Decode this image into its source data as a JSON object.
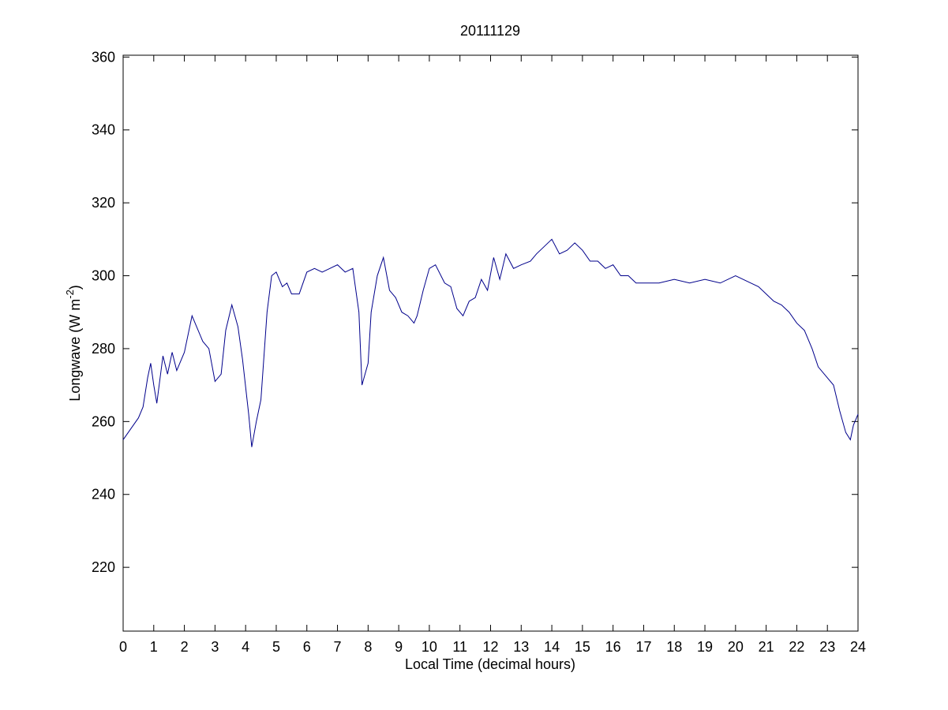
{
  "chart_data": {
    "type": "line",
    "title": "20111129",
    "x_label": "Local Time (decimal hours)",
    "y_label": {
      "text": "Longwave (W m",
      "superscript": "-2",
      "close": ")"
    },
    "xlim": [
      0,
      24
    ],
    "ylim": [
      202.5,
      360.5
    ],
    "xticks": [
      0,
      1,
      2,
      3,
      4,
      5,
      6,
      7,
      8,
      9,
      10,
      11,
      12,
      13,
      14,
      15,
      16,
      17,
      18,
      19,
      20,
      21,
      22,
      23,
      24
    ],
    "yticks": [
      220,
      240,
      260,
      280,
      300,
      320,
      340,
      360
    ],
    "grid": false,
    "series": [
      {
        "color": "#00008b",
        "x": [
          0,
          0.25,
          0.5,
          0.65,
          0.8,
          0.9,
          1.0,
          1.1,
          1.3,
          1.45,
          1.6,
          1.75,
          2.0,
          2.1,
          2.25,
          2.4,
          2.6,
          2.8,
          3.0,
          3.2,
          3.35,
          3.55,
          3.75,
          3.9,
          4.1,
          4.2,
          4.35,
          4.5,
          4.7,
          4.85,
          5.0,
          5.2,
          5.35,
          5.5,
          5.75,
          6.0,
          6.25,
          6.5,
          6.75,
          7.0,
          7.25,
          7.5,
          7.7,
          7.8,
          8.0,
          8.1,
          8.3,
          8.5,
          8.7,
          8.9,
          9.1,
          9.3,
          9.5,
          9.6,
          9.8,
          10.0,
          10.2,
          10.5,
          10.7,
          10.9,
          11.1,
          11.3,
          11.5,
          11.7,
          11.9,
          12.1,
          12.3,
          12.5,
          12.75,
          13.0,
          13.3,
          13.5,
          13.75,
          14.0,
          14.25,
          14.5,
          14.75,
          15.0,
          15.25,
          15.5,
          15.75,
          16.0,
          16.25,
          16.5,
          16.75,
          17.0,
          17.5,
          18.0,
          18.5,
          19.0,
          19.5,
          20.0,
          20.25,
          20.5,
          20.75,
          21.0,
          21.25,
          21.5,
          21.75,
          22.0,
          22.25,
          22.5,
          22.7,
          23.0,
          23.2,
          23.4,
          23.6,
          23.75,
          23.85,
          24.0
        ],
        "values": [
          255,
          258,
          261,
          264,
          272,
          276,
          270,
          265,
          278,
          273,
          279,
          274,
          279,
          283,
          289,
          286,
          282,
          280,
          271,
          273,
          285,
          292,
          286,
          277,
          262,
          253,
          260,
          266,
          290,
          300,
          301,
          297,
          298,
          295,
          295,
          301,
          302,
          301,
          302,
          303,
          301,
          302,
          290,
          270,
          276,
          290,
          300,
          305,
          296,
          294,
          290,
          289,
          287,
          289,
          296,
          302,
          303,
          298,
          297,
          291,
          289,
          293,
          294,
          299,
          296,
          305,
          299,
          306,
          302,
          303,
          304,
          306,
          308,
          310,
          306,
          307,
          309,
          307,
          304,
          304,
          302,
          303,
          300,
          300,
          298,
          298,
          298,
          299,
          298,
          299,
          298,
          300,
          299,
          298,
          297,
          295,
          293,
          292,
          290,
          287,
          285,
          280,
          275,
          272,
          270,
          263,
          257,
          255,
          259,
          262
        ]
      }
    ]
  }
}
